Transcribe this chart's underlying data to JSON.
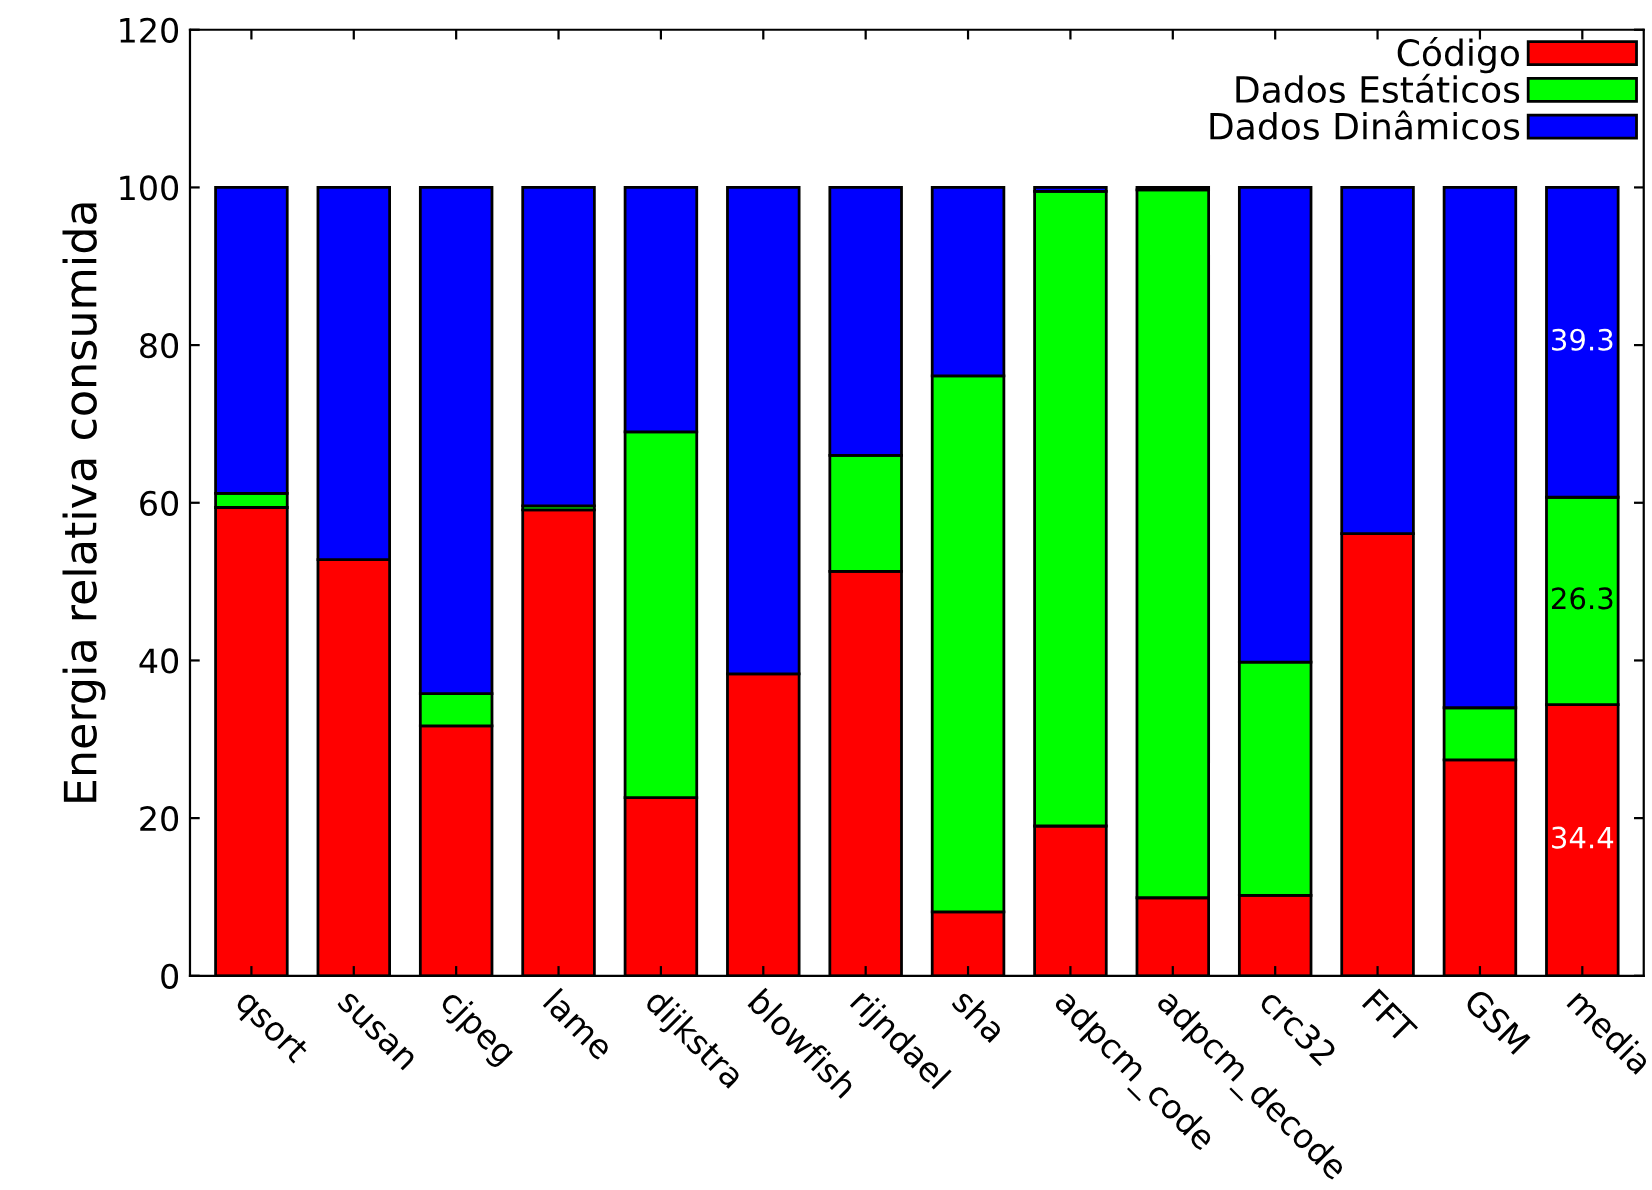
{
  "chart_data": {
    "type": "bar",
    "stacked": true,
    "ylabel": "Energia relativa consumida",
    "categories": [
      "qsort",
      "susan",
      "cjpeg",
      "lame",
      "dijkstra",
      "blowfish",
      "rijndael",
      "sha",
      "adpcm_code",
      "adpcm_decode",
      "crc32",
      "FFT",
      "GSM",
      "media"
    ],
    "series": [
      {
        "name": "Código",
        "color": "#ff0000",
        "values": [
          59.4,
          52.8,
          31.7,
          59.1,
          22.6,
          38.3,
          51.3,
          8.1,
          19.0,
          9.9,
          10.2,
          56.1,
          27.4,
          34.4
        ],
        "value_labels": [
          null,
          null,
          null,
          null,
          null,
          null,
          null,
          null,
          null,
          null,
          null,
          null,
          null,
          "34.4"
        ]
      },
      {
        "name": "Dados Estáticos",
        "color": "#00ff00",
        "values": [
          1.8,
          0,
          4.1,
          0.5,
          46.4,
          0,
          14.7,
          68.0,
          80.5,
          89.8,
          29.6,
          0,
          6.6,
          26.3
        ],
        "value_labels": [
          null,
          null,
          null,
          null,
          null,
          null,
          null,
          null,
          null,
          null,
          null,
          null,
          null,
          "26.3"
        ]
      },
      {
        "name": "Dados Dinâmicos",
        "color": "#0000ff",
        "values": [
          38.8,
          47.2,
          64.2,
          40.4,
          31.0,
          61.7,
          34.0,
          23.9,
          0.5,
          0.3,
          60.2,
          43.9,
          66.0,
          39.3
        ],
        "value_labels": [
          null,
          null,
          null,
          null,
          null,
          null,
          null,
          null,
          null,
          null,
          null,
          null,
          null,
          "39.3"
        ]
      }
    ],
    "ylim": [
      0,
      120
    ],
    "yticks": [
      0,
      20,
      40,
      60,
      80,
      100,
      120
    ],
    "grid": false,
    "legend": "top right"
  }
}
